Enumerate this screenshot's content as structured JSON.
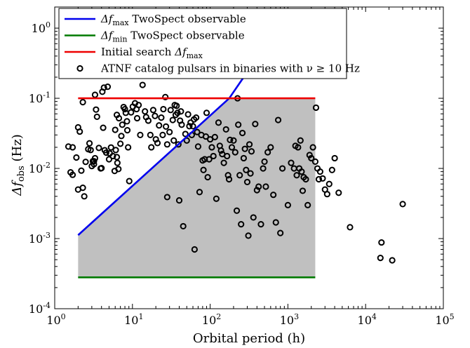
{
  "chart_data": {
    "type": "scatter",
    "title": "",
    "xlabel": "Orbital period (h)",
    "ylabel": "Δf_obs (Hz)",
    "xscale": "log",
    "yscale": "log",
    "xlim": [
      1,
      100000
    ],
    "ylim": [
      0.0001,
      2
    ],
    "x_ticks": [
      {
        "value": 1,
        "base": "10",
        "exp": "0"
      },
      {
        "value": 10,
        "base": "10",
        "exp": "1"
      },
      {
        "value": 100,
        "base": "10",
        "exp": "2"
      },
      {
        "value": 1000,
        "base": "10",
        "exp": "3"
      },
      {
        "value": 10000,
        "base": "10",
        "exp": "4"
      },
      {
        "value": 100000,
        "base": "10",
        "exp": "5"
      }
    ],
    "y_ticks": [
      {
        "value": 0.0001,
        "base": "10",
        "exp": "-4"
      },
      {
        "value": 0.001,
        "base": "10",
        "exp": "-3"
      },
      {
        "value": 0.01,
        "base": "10",
        "exp": "-2"
      },
      {
        "value": 0.1,
        "base": "10",
        "exp": "-1"
      },
      {
        "value": 1,
        "base": "10",
        "exp": "0"
      }
    ],
    "grid": false,
    "legend_position": "top-left",
    "legend": [
      {
        "id": "max",
        "text": "Δf_max TwoSpect observable",
        "color": "#0000ee",
        "marker": "line"
      },
      {
        "id": "min",
        "text": "Δf_min TwoSpect observable",
        "color": "#007a00",
        "marker": "line"
      },
      {
        "id": "init",
        "text": "Initial search Δf_max",
        "color": "#ee0000",
        "marker": "line"
      },
      {
        "id": "atnf",
        "text": "ATNF catalog pulsars in binaries with ν ≥ 10 Hz",
        "color": "#000000",
        "marker": "circle"
      }
    ],
    "search_region": {
      "x_min": 2,
      "x_max": 2250,
      "y_max": 0.1,
      "fill": "#c0c0c0"
    },
    "lines": [
      {
        "name": "Δf_max TwoSpect observable",
        "color": "#0000ee",
        "x": [
          2,
          176
        ],
        "y": [
          0.00112,
          0.1
        ]
      },
      {
        "name": "Δf_max TwoSpect observable",
        "color": "#0000ee",
        "x": [
          176,
          270
        ],
        "y": [
          0.1,
          0.2
        ]
      },
      {
        "name": "Δf_min TwoSpect observable",
        "color": "#007a00",
        "x": [
          2,
          2250
        ],
        "y": [
          0.00028,
          0.00028
        ]
      },
      {
        "name": "Initial search Δf_max",
        "color": "#ee0000",
        "x": [
          2,
          2250
        ],
        "y": [
          0.1,
          0.1
        ]
      }
    ],
    "series": [
      {
        "name": "ATNF catalog pulsars in binaries with ν ≥ 10 Hz",
        "color": "#000000",
        "points": [
          [
            1.5,
            0.0205
          ],
          [
            1.7,
            0.02
          ],
          [
            1.6,
            0.0088
          ],
          [
            1.7,
            0.0081
          ],
          [
            1.9,
            0.0143
          ],
          [
            2,
            0.0385
          ],
          [
            2.1,
            0.0335
          ],
          [
            2.2,
            0.0093
          ],
          [
            2,
            0.005
          ],
          [
            2.3,
            0.0053
          ],
          [
            2.4,
            0.004
          ],
          [
            2.3,
            0.088
          ],
          [
            2.5,
            0.0124
          ],
          [
            2.7,
            0.0188
          ],
          [
            2.8,
            0.0228
          ],
          [
            2.9,
            0.0183
          ],
          [
            3,
            0.0108
          ],
          [
            3.1,
            0.0127
          ],
          [
            3.2,
            0.0127
          ],
          [
            3.2,
            0.0115
          ],
          [
            3.3,
            0.014
          ],
          [
            3.3,
            0.112
          ],
          [
            3.4,
            0.069
          ],
          [
            3.5,
            0.0545
          ],
          [
            3.7,
            0.0196
          ],
          [
            3.9,
            0.01
          ],
          [
            4,
            0.0101
          ],
          [
            4.1,
            0.124
          ],
          [
            4.2,
            0.038
          ],
          [
            4.3,
            0.142
          ],
          [
            4.4,
            0.0182
          ],
          [
            4.6,
            0.0168
          ],
          [
            4.8,
            0.146
          ],
          [
            5,
            0.0135
          ],
          [
            5.1,
            0.0164
          ],
          [
            5.3,
            0.0199
          ],
          [
            5.6,
            0.015
          ],
          [
            5.9,
            0.0092
          ],
          [
            6,
            0.0355
          ],
          [
            6.1,
            0.0183
          ],
          [
            6.3,
            0.058
          ],
          [
            6.3,
            0.0145
          ],
          [
            6.4,
            0.012
          ],
          [
            6.6,
            0.0098
          ],
          [
            6.7,
            0.052
          ],
          [
            7,
            0.0225
          ],
          [
            7.2,
            0.029
          ],
          [
            7.4,
            0.042
          ],
          [
            7.7,
            0.075
          ],
          [
            8,
            0.07
          ],
          [
            8.2,
            0.062
          ],
          [
            8.5,
            0.047
          ],
          [
            8.6,
            0.035
          ],
          [
            8.8,
            0.02
          ],
          [
            9.1,
            0.0066
          ],
          [
            9.6,
            0.063
          ],
          [
            10.1,
            0.076
          ],
          [
            10.8,
            0.085
          ],
          [
            11.3,
            0.07
          ],
          [
            11.5,
            0.052
          ],
          [
            12,
            0.08
          ],
          [
            12.6,
            0.03
          ],
          [
            13.5,
            0.155
          ],
          [
            14.5,
            0.065
          ],
          [
            15,
            0.054
          ],
          [
            16,
            0.048
          ],
          [
            17,
            0.03
          ],
          [
            17.5,
            0.02
          ],
          [
            18.5,
            0.068
          ],
          [
            19.5,
            0.056
          ],
          [
            20,
            0.026
          ],
          [
            21,
            0.023
          ],
          [
            22,
            0.041
          ],
          [
            23.5,
            0.053
          ],
          [
            24.5,
            0.03
          ],
          [
            25,
            0.07
          ],
          [
            26.5,
            0.104
          ],
          [
            27,
            0.0395
          ],
          [
            28,
            0.022
          ],
          [
            28,
            0.0039
          ],
          [
            30,
            0.033
          ],
          [
            31,
            0.068
          ],
          [
            33,
            0.049
          ],
          [
            34,
            0.025
          ],
          [
            35,
            0.08
          ],
          [
            36,
            0.058
          ],
          [
            37,
            0.078
          ],
          [
            38,
            0.062
          ],
          [
            39,
            0.022
          ],
          [
            40,
            0.0035
          ],
          [
            41,
            0.048
          ],
          [
            42,
            0.065
          ],
          [
            43,
            0.042
          ],
          [
            45,
            0.0015
          ],
          [
            48,
            0.031
          ],
          [
            50,
            0.025
          ],
          [
            52,
            0.059
          ],
          [
            54,
            0.04
          ],
          [
            56,
            0.045
          ],
          [
            58,
            0.03
          ],
          [
            60,
            0.04
          ],
          [
            62,
            0.05
          ],
          [
            63,
            0.0007
          ],
          [
            66,
            0.053
          ],
          [
            68,
            0.033
          ],
          [
            70,
            0.0205
          ],
          [
            73,
            0.0046
          ],
          [
            77,
            0.03
          ],
          [
            80,
            0.013
          ],
          [
            82,
            0.0095
          ],
          [
            85,
            0.0135
          ],
          [
            88,
            0.0285
          ],
          [
            90,
            0.062
          ],
          [
            93,
            0.0075
          ],
          [
            97,
            0.0135
          ],
          [
            100,
            0.026
          ],
          [
            105,
            0.02
          ],
          [
            110,
            0.015
          ],
          [
            115,
            0.028
          ],
          [
            120,
            0.0037
          ],
          [
            128,
            0.045
          ],
          [
            133,
            0.021
          ],
          [
            138,
            0.018
          ],
          [
            143,
            0.016
          ],
          [
            150,
            0.012
          ],
          [
            160,
            0.036
          ],
          [
            165,
            0.015
          ],
          [
            170,
            0.008
          ],
          [
            175,
            0.007
          ],
          [
            180,
            0.0255
          ],
          [
            190,
            0.02
          ],
          [
            200,
            0.025
          ],
          [
            210,
            0.017
          ],
          [
            220,
            0.0025
          ],
          [
            225,
            0.1
          ],
          [
            230,
            0.042
          ],
          [
            240,
            0.008
          ],
          [
            250,
            0.0016
          ],
          [
            260,
            0.032
          ],
          [
            270,
            0.014
          ],
          [
            280,
            0.019
          ],
          [
            290,
            0.0095
          ],
          [
            300,
            0.0064
          ],
          [
            310,
            0.0011
          ],
          [
            320,
            0.022
          ],
          [
            330,
            0.0085
          ],
          [
            340,
            0.0175
          ],
          [
            360,
            0.002
          ],
          [
            380,
            0.043
          ],
          [
            400,
            0.0049
          ],
          [
            420,
            0.0055
          ],
          [
            450,
            0.0016
          ],
          [
            480,
            0.01
          ],
          [
            500,
            0.0125
          ],
          [
            520,
            0.0055
          ],
          [
            550,
            0.017
          ],
          [
            600,
            0.02
          ],
          [
            650,
            0.0042
          ],
          [
            700,
            0.0017
          ],
          [
            750,
            0.049
          ],
          [
            800,
            0.0012
          ],
          [
            850,
            0.01
          ],
          [
            1000,
            0.003
          ],
          [
            1100,
            0.012
          ],
          [
            1200,
            0.01
          ],
          [
            1250,
            0.021
          ],
          [
            1300,
            0.008
          ],
          [
            1350,
            0.02
          ],
          [
            1400,
            0.01
          ],
          [
            1450,
            0.025
          ],
          [
            1500,
            0.009
          ],
          [
            1550,
            0.0048
          ],
          [
            1600,
            0.0075
          ],
          [
            1700,
            0.007
          ],
          [
            1800,
            0.003
          ],
          [
            1900,
            0.0155
          ],
          [
            2000,
            0.014
          ],
          [
            2100,
            0.02
          ],
          [
            2250,
            0.0125
          ],
          [
            2300,
            0.0735
          ],
          [
            2400,
            0.01
          ],
          [
            2500,
            0.007
          ],
          [
            2600,
            0.009
          ],
          [
            2800,
            0.0072
          ],
          [
            3000,
            0.005
          ],
          [
            3200,
            0.0043
          ],
          [
            3400,
            0.006
          ],
          [
            3700,
            0.0095
          ],
          [
            4000,
            0.014
          ],
          [
            4500,
            0.0045
          ],
          [
            6300,
            0.00145
          ],
          [
            15500,
            0.00053
          ],
          [
            16000,
            0.00088
          ],
          [
            22000,
            0.00049
          ],
          [
            30000,
            0.0031
          ]
        ]
      }
    ]
  }
}
